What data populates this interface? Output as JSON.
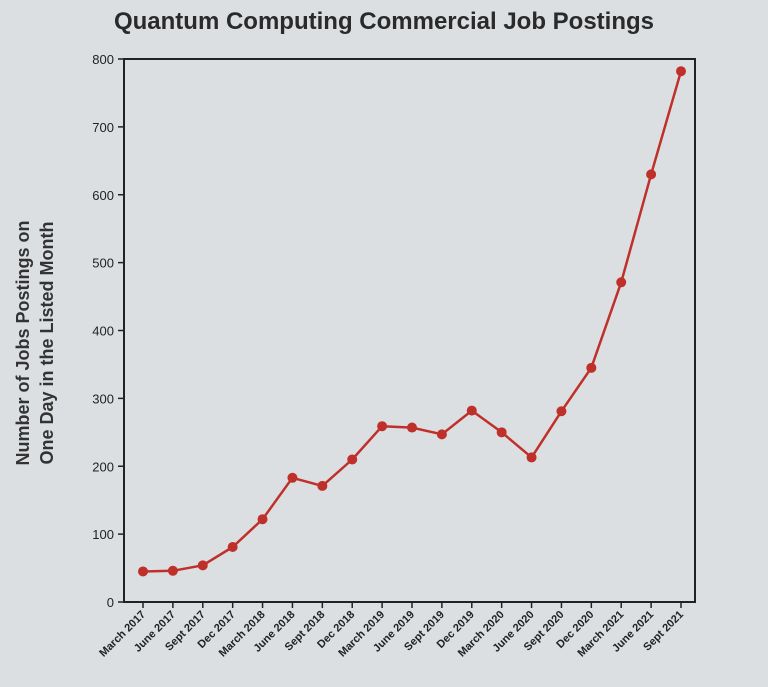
{
  "chart_data": {
    "type": "line",
    "title": "Quantum Computing Commercial Job Postings",
    "xlabel": "",
    "ylabel_lines": [
      "Number of Jobs Postings on",
      "One Day in the Listed Month"
    ],
    "ylim": [
      0,
      800
    ],
    "yticks": [
      0,
      100,
      200,
      300,
      400,
      500,
      600,
      700,
      800
    ],
    "grid": false,
    "categories": [
      "March 2017",
      "June 2017",
      "Sept 2017",
      "Dec 2017",
      "March 2018",
      "June 2018",
      "Sept 2018",
      "Dec 2018",
      "March 2019",
      "June 2019",
      "Sept 2019",
      "Dec 2019",
      "March 2020",
      "June 2020",
      "Sept 2020",
      "Dec 2020",
      "March 2021",
      "June 2021",
      "Sept 2021"
    ],
    "series": [
      {
        "values": [
          45,
          46,
          54,
          81,
          122,
          183,
          171,
          210,
          259,
          257,
          247,
          282,
          250,
          213,
          281,
          345,
          471,
          630,
          782
        ],
        "color": "#c0302a"
      }
    ]
  }
}
